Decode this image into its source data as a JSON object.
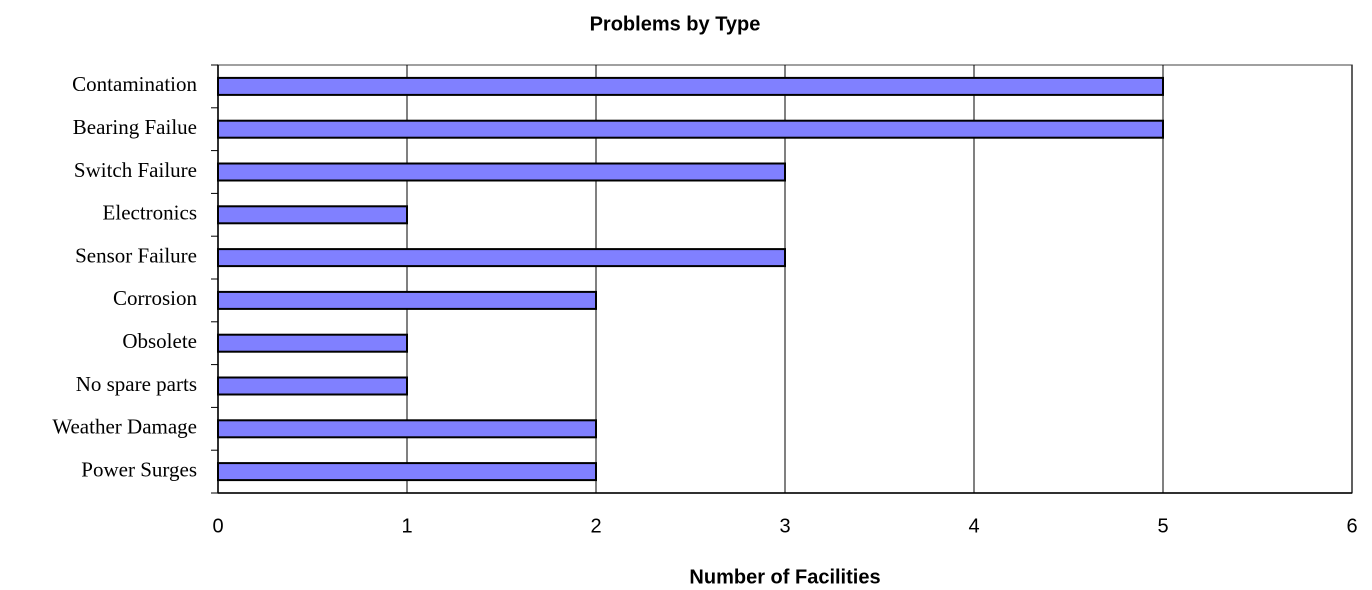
{
  "chart_data": {
    "type": "bar",
    "orientation": "horizontal",
    "title": "Problems by Type",
    "x_label": "Number of Facilities",
    "categories": [
      "Contamination",
      "Bearing Failue",
      "Switch Failure",
      "Electronics",
      "Sensor Failure",
      "Corrosion",
      "Obsolete",
      "No spare parts",
      "Weather Damage",
      "Power Surges"
    ],
    "values": [
      5,
      5,
      3,
      1,
      3,
      2,
      1,
      1,
      2,
      2
    ],
    "color": "#8080ff",
    "xlim": [
      0,
      6
    ],
    "xticks": [
      0,
      1,
      2,
      3,
      4,
      5,
      6
    ],
    "grid": true
  }
}
